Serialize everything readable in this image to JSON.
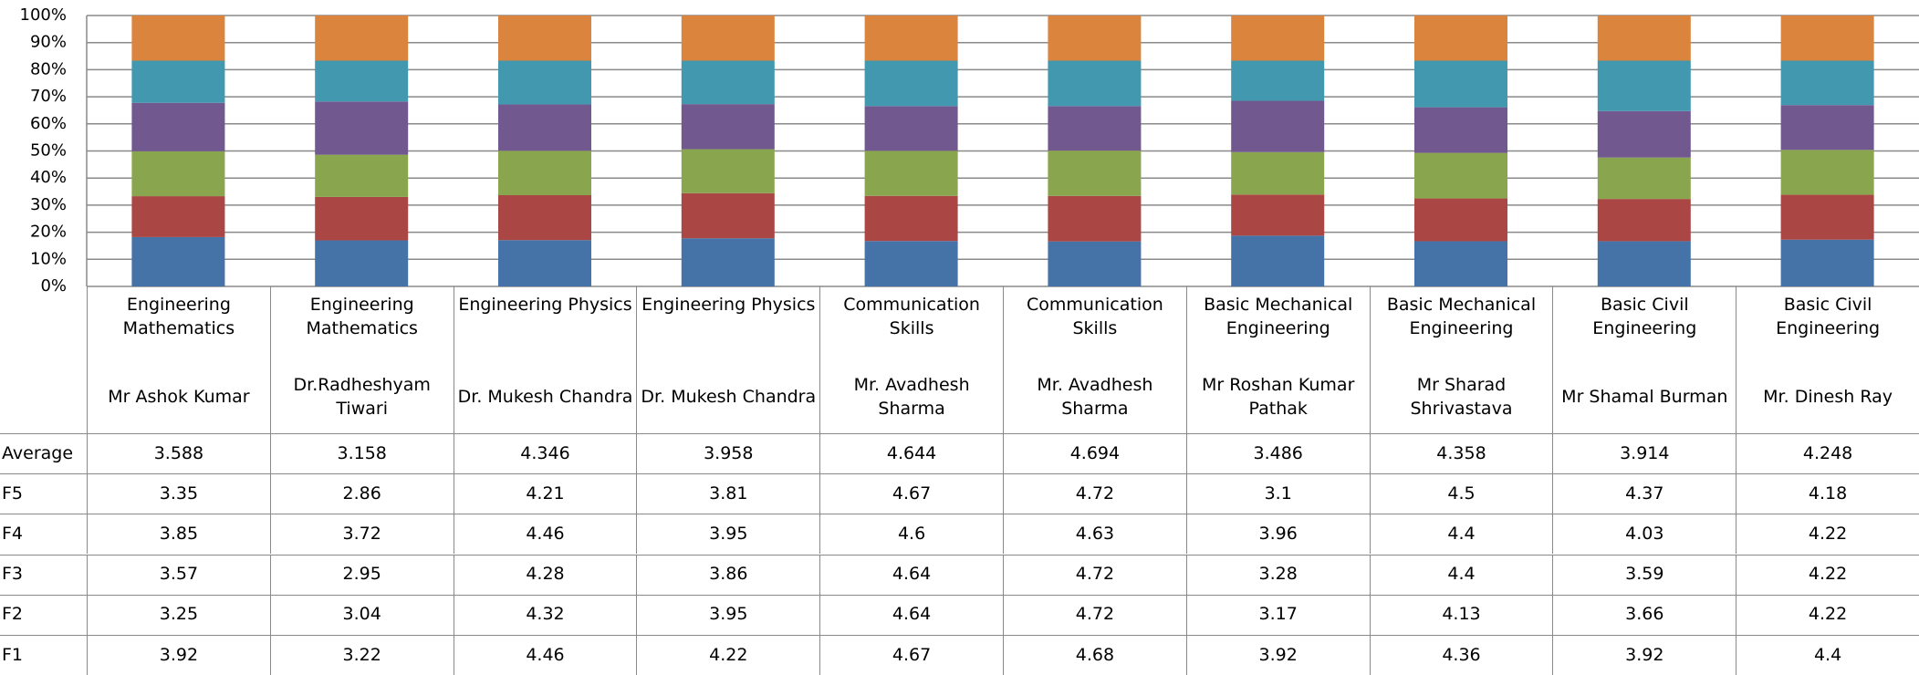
{
  "chart_data": {
    "type": "bar",
    "stacked_percent": true,
    "categories": [
      "Engineering Mathematics",
      "Engineering Mathematics",
      "Engineering Physics",
      "Engineering Physics",
      "Communication Skills",
      "Communication Skills",
      "Basic Mechanical Engineering",
      "Basic Mechanical Engineering",
      "Basic Civil Engineering",
      "Basic Civil Engineering"
    ],
    "instructors": [
      "Mr Ashok Kumar",
      "Dr.Radheshyam Tiwari",
      "Dr. Mukesh Chandra",
      "Dr. Mukesh Chandra",
      "Mr. Avadhesh Sharma",
      "Mr. Avadhesh Sharma",
      "Mr Roshan Kumar Pathak",
      "Mr Sharad Shrivastava",
      "Mr Shamal Burman",
      "Mr. Dinesh Ray"
    ],
    "series": [
      {
        "name": "Average",
        "color": "#db843d",
        "values": [
          3.588,
          3.158,
          4.346,
          3.958,
          4.644,
          4.694,
          3.486,
          4.358,
          3.914,
          4.248
        ]
      },
      {
        "name": "F5",
        "color": "#4198af",
        "values": [
          3.35,
          2.86,
          4.21,
          3.81,
          4.67,
          4.72,
          3.1,
          4.5,
          4.37,
          4.18
        ]
      },
      {
        "name": "F4",
        "color": "#71588f",
        "values": [
          3.85,
          3.72,
          4.46,
          3.95,
          4.6,
          4.63,
          3.96,
          4.4,
          4.03,
          4.22
        ]
      },
      {
        "name": "F3",
        "color": "#89a54e",
        "values": [
          3.57,
          2.95,
          4.28,
          3.86,
          4.64,
          4.72,
          3.28,
          4.4,
          3.59,
          4.22
        ]
      },
      {
        "name": "F2",
        "color": "#aa4643",
        "values": [
          3.25,
          3.04,
          4.32,
          3.95,
          4.64,
          4.72,
          3.17,
          4.13,
          3.66,
          4.22
        ]
      },
      {
        "name": "F1",
        "color": "#4572a7",
        "values": [
          3.92,
          3.22,
          4.46,
          4.22,
          4.67,
          4.68,
          3.92,
          4.36,
          3.92,
          4.4
        ]
      }
    ],
    "ylim": [
      0,
      100
    ],
    "yticks": [
      {
        "value": 0,
        "label": "0%"
      },
      {
        "value": 10,
        "label": "10%"
      },
      {
        "value": 20,
        "label": "20%"
      },
      {
        "value": 30,
        "label": "30%"
      },
      {
        "value": 40,
        "label": "40%"
      },
      {
        "value": 50,
        "label": "50%"
      },
      {
        "value": 60,
        "label": "60%"
      },
      {
        "value": 70,
        "label": "70%"
      },
      {
        "value": 80,
        "label": "80%"
      },
      {
        "value": 90,
        "label": "90%"
      },
      {
        "value": 100,
        "label": "100%"
      }
    ],
    "grid": true
  }
}
